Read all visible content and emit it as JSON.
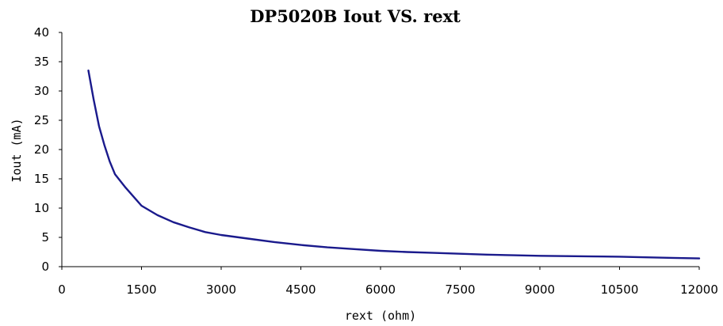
{
  "chart_data": {
    "type": "line",
    "title": "DP5020B Iout VS. rext",
    "xlabel": "rext (ohm)",
    "ylabel": "Iout (mA)",
    "xlim": [
      0,
      12000
    ],
    "ylim": [
      0,
      40
    ],
    "grid": false,
    "x_ticks": [
      "0",
      "1500",
      "3000",
      "4500",
      "6000",
      "7500",
      "9000",
      "10500",
      "12000"
    ],
    "y_ticks": [
      "0",
      "5",
      "10",
      "15",
      "20",
      "25",
      "30",
      "35",
      "40"
    ],
    "series": [
      {
        "color": "#1a1a8c",
        "x": [
          500,
          600,
          700,
          800,
          900,
          1000,
          1200,
          1500,
          1800,
          2100,
          2400,
          2700,
          3000,
          3500,
          4000,
          4500,
          5000,
          5500,
          6000,
          6500,
          7000,
          7500,
          8000,
          8500,
          9000,
          9500,
          10000,
          10500,
          11000,
          11500,
          12000
        ],
        "y": [
          33.5,
          28.5,
          24.0,
          20.8,
          18.0,
          15.8,
          13.5,
          10.4,
          8.8,
          7.6,
          6.7,
          5.9,
          5.4,
          4.8,
          4.2,
          3.7,
          3.3,
          3.0,
          2.7,
          2.5,
          2.35,
          2.2,
          2.05,
          1.95,
          1.85,
          1.8,
          1.75,
          1.7,
          1.6,
          1.5,
          1.4
        ]
      }
    ]
  }
}
